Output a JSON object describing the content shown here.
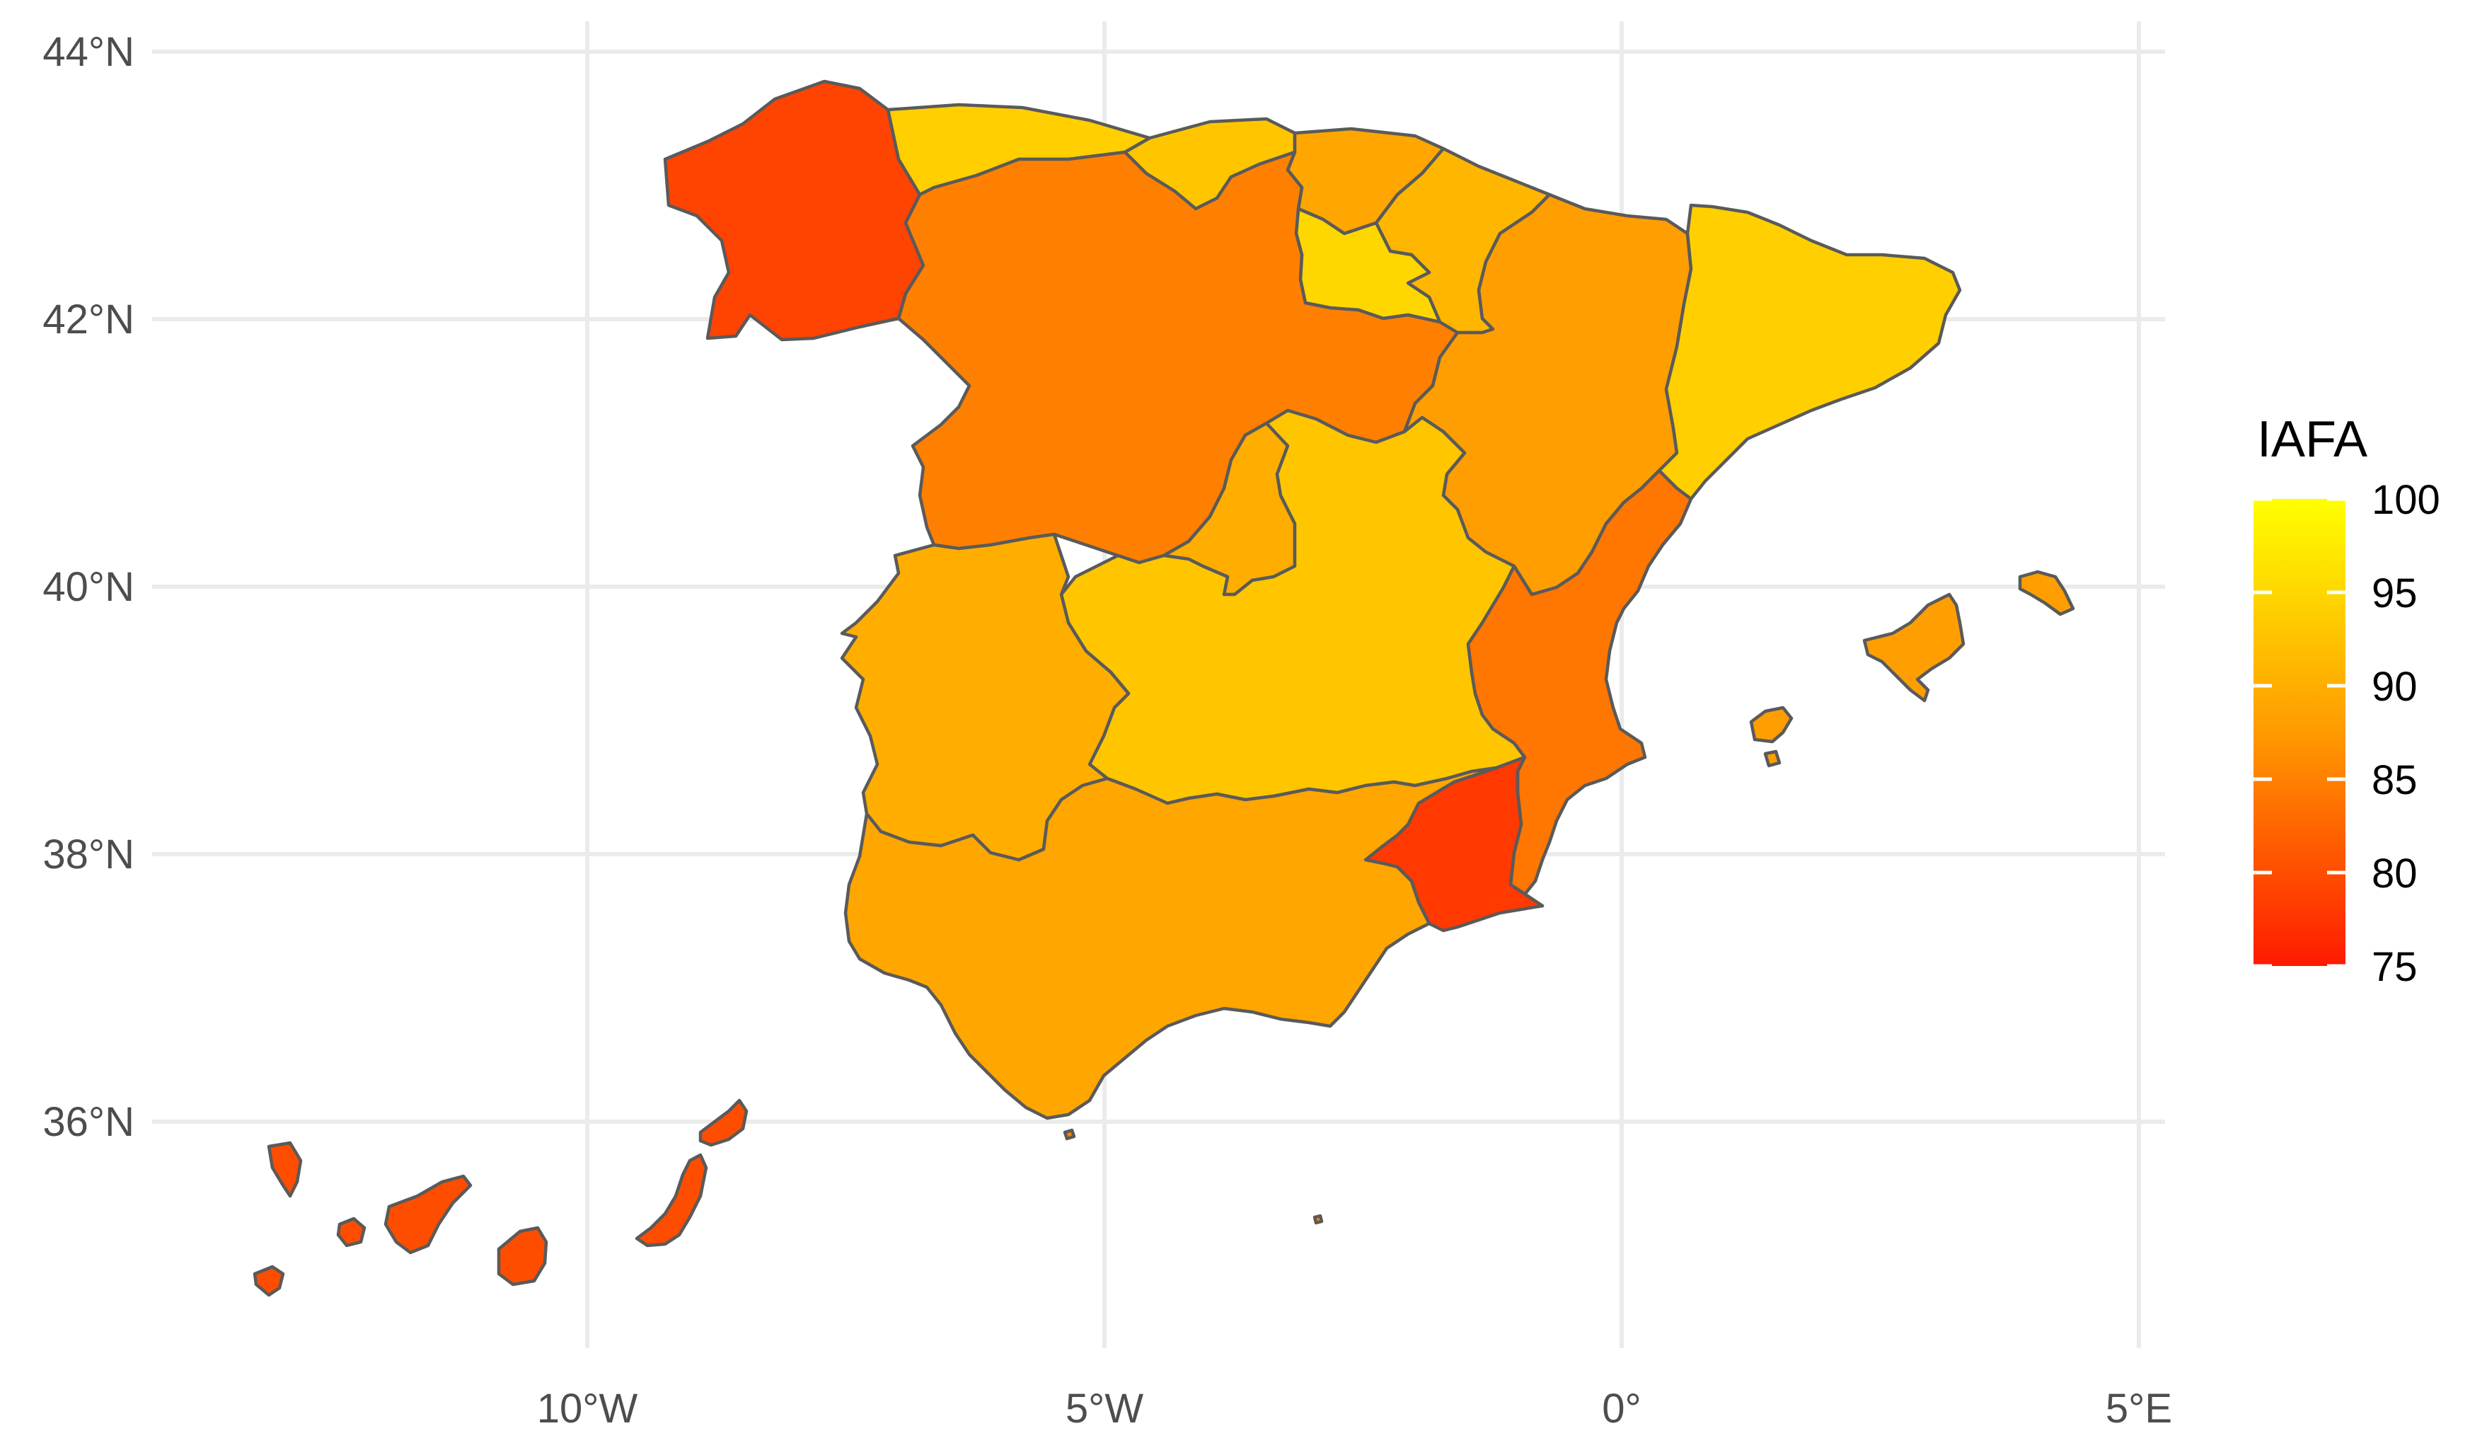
{
  "map": {
    "x_axis": {
      "ticks": [
        {
          "lon": -10,
          "label": "10°W"
        },
        {
          "lon": -5,
          "label": "5°W"
        },
        {
          "lon": 0,
          "label": "0°"
        },
        {
          "lon": 5,
          "label": "5°E"
        }
      ]
    },
    "y_axis": {
      "ticks": [
        {
          "lat": 36,
          "label": "36°N"
        },
        {
          "lat": 38,
          "label": "38°N"
        },
        {
          "lat": 40,
          "label": "40°N"
        },
        {
          "lat": 42,
          "label": "42°N"
        },
        {
          "lat": 44,
          "label": "44°N"
        }
      ]
    },
    "grid": true
  },
  "legend": {
    "title": "IAFA",
    "min": 75,
    "max": 100,
    "labels": [
      "100",
      "95",
      "90",
      "85",
      "80",
      "75"
    ],
    "colors": {
      "low": "#ff1a00",
      "mid": "#ff9a00",
      "high": "#ffff00"
    },
    "placement": "right"
  },
  "regions": [
    {
      "name": "Galicia",
      "value": 79
    },
    {
      "name": "Asturias",
      "value": 94
    },
    {
      "name": "Cantabria",
      "value": 93
    },
    {
      "name": "País Vasco",
      "value": 89
    },
    {
      "name": "Navarra",
      "value": 91
    },
    {
      "name": "La Rioja",
      "value": 95
    },
    {
      "name": "Castilla y León",
      "value": 85
    },
    {
      "name": "Aragón",
      "value": 88
    },
    {
      "name": "Cataluña",
      "value": 94
    },
    {
      "name": "Madrid",
      "value": 90
    },
    {
      "name": "Castilla-La Mancha",
      "value": 93
    },
    {
      "name": "Extremadura",
      "value": 90
    },
    {
      "name": "Comunidad Valenciana",
      "value": 84
    },
    {
      "name": "Región de Murcia",
      "value": 78
    },
    {
      "name": "Andalucía",
      "value": 89
    },
    {
      "name": "Islas Baleares",
      "value": 88
    },
    {
      "name": "Canarias",
      "value": 80
    },
    {
      "name": "Ceuta y Melilla",
      "value": 85
    }
  ]
}
